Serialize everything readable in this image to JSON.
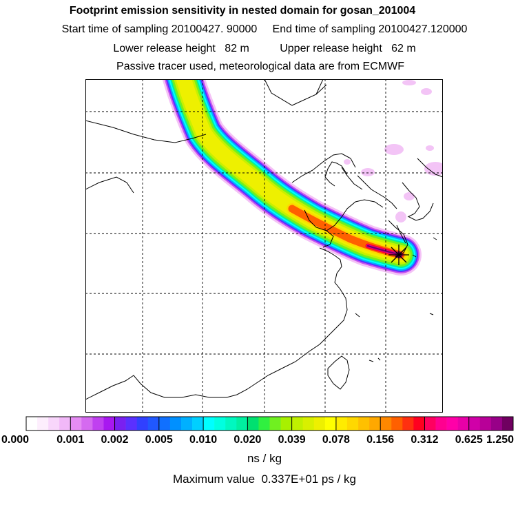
{
  "header": {
    "line1": "Footprint emission sensitivity in nested domain for gosan_201004",
    "line2": "Start time of sampling 20100427. 90000     End time of sampling 20100427.120000",
    "line3": "Lower release height   82 m          Upper release height   62 m",
    "line4": "Passive tracer used, meteorological data are from ECMWF"
  },
  "colorbar": {
    "ticks": [
      "0.000",
      "0.001",
      "0.002",
      "0.005",
      "0.010",
      "0.020",
      "0.039",
      "0.078",
      "0.156",
      "0.312",
      "0.625",
      "1.250"
    ],
    "colors": [
      [
        "#ffffff",
        "#fdeefd",
        "#f8d6fb",
        "#f1b8f8"
      ],
      [
        "#e58cf3",
        "#d56af0",
        "#c040f0",
        "#a818f0"
      ],
      [
        "#7a20f0",
        "#5a30ff",
        "#3040ff",
        "#2058ff"
      ],
      [
        "#1070ff",
        "#0090ff",
        "#00b0ff",
        "#00d0ff"
      ],
      [
        "#00ffff",
        "#00ffe0",
        "#00f8c0",
        "#00f0a0"
      ],
      [
        "#00e070",
        "#30f040",
        "#70f020",
        "#a8f000"
      ],
      [
        "#c0f000",
        "#d8f000",
        "#eef000",
        "#ffff00"
      ],
      [
        "#ffec00",
        "#ffd800",
        "#ffc000",
        "#ffa800"
      ],
      [
        "#ff8800",
        "#ff6000",
        "#ff3010",
        "#ff0020"
      ],
      [
        "#ff0060",
        "#ff0090",
        "#ff00a8",
        "#e800a8"
      ],
      [
        "#d000a8",
        "#b80098",
        "#980088",
        "#700060"
      ]
    ],
    "unit": "ns / kg"
  },
  "max_value": "Maximum value  0.337E+01 ps / kg",
  "map": {
    "plume_colors": [
      "#f4c2f6",
      "#c852f0",
      "#5a30ff",
      "#00b0ff",
      "#00ffff",
      "#00f0a0",
      "#70f020",
      "#c8f000",
      "#eef000",
      "#ffd800",
      "#ff6000",
      "#ff0030",
      "#d000a8",
      "#700060"
    ],
    "grid_color": "#000000"
  }
}
